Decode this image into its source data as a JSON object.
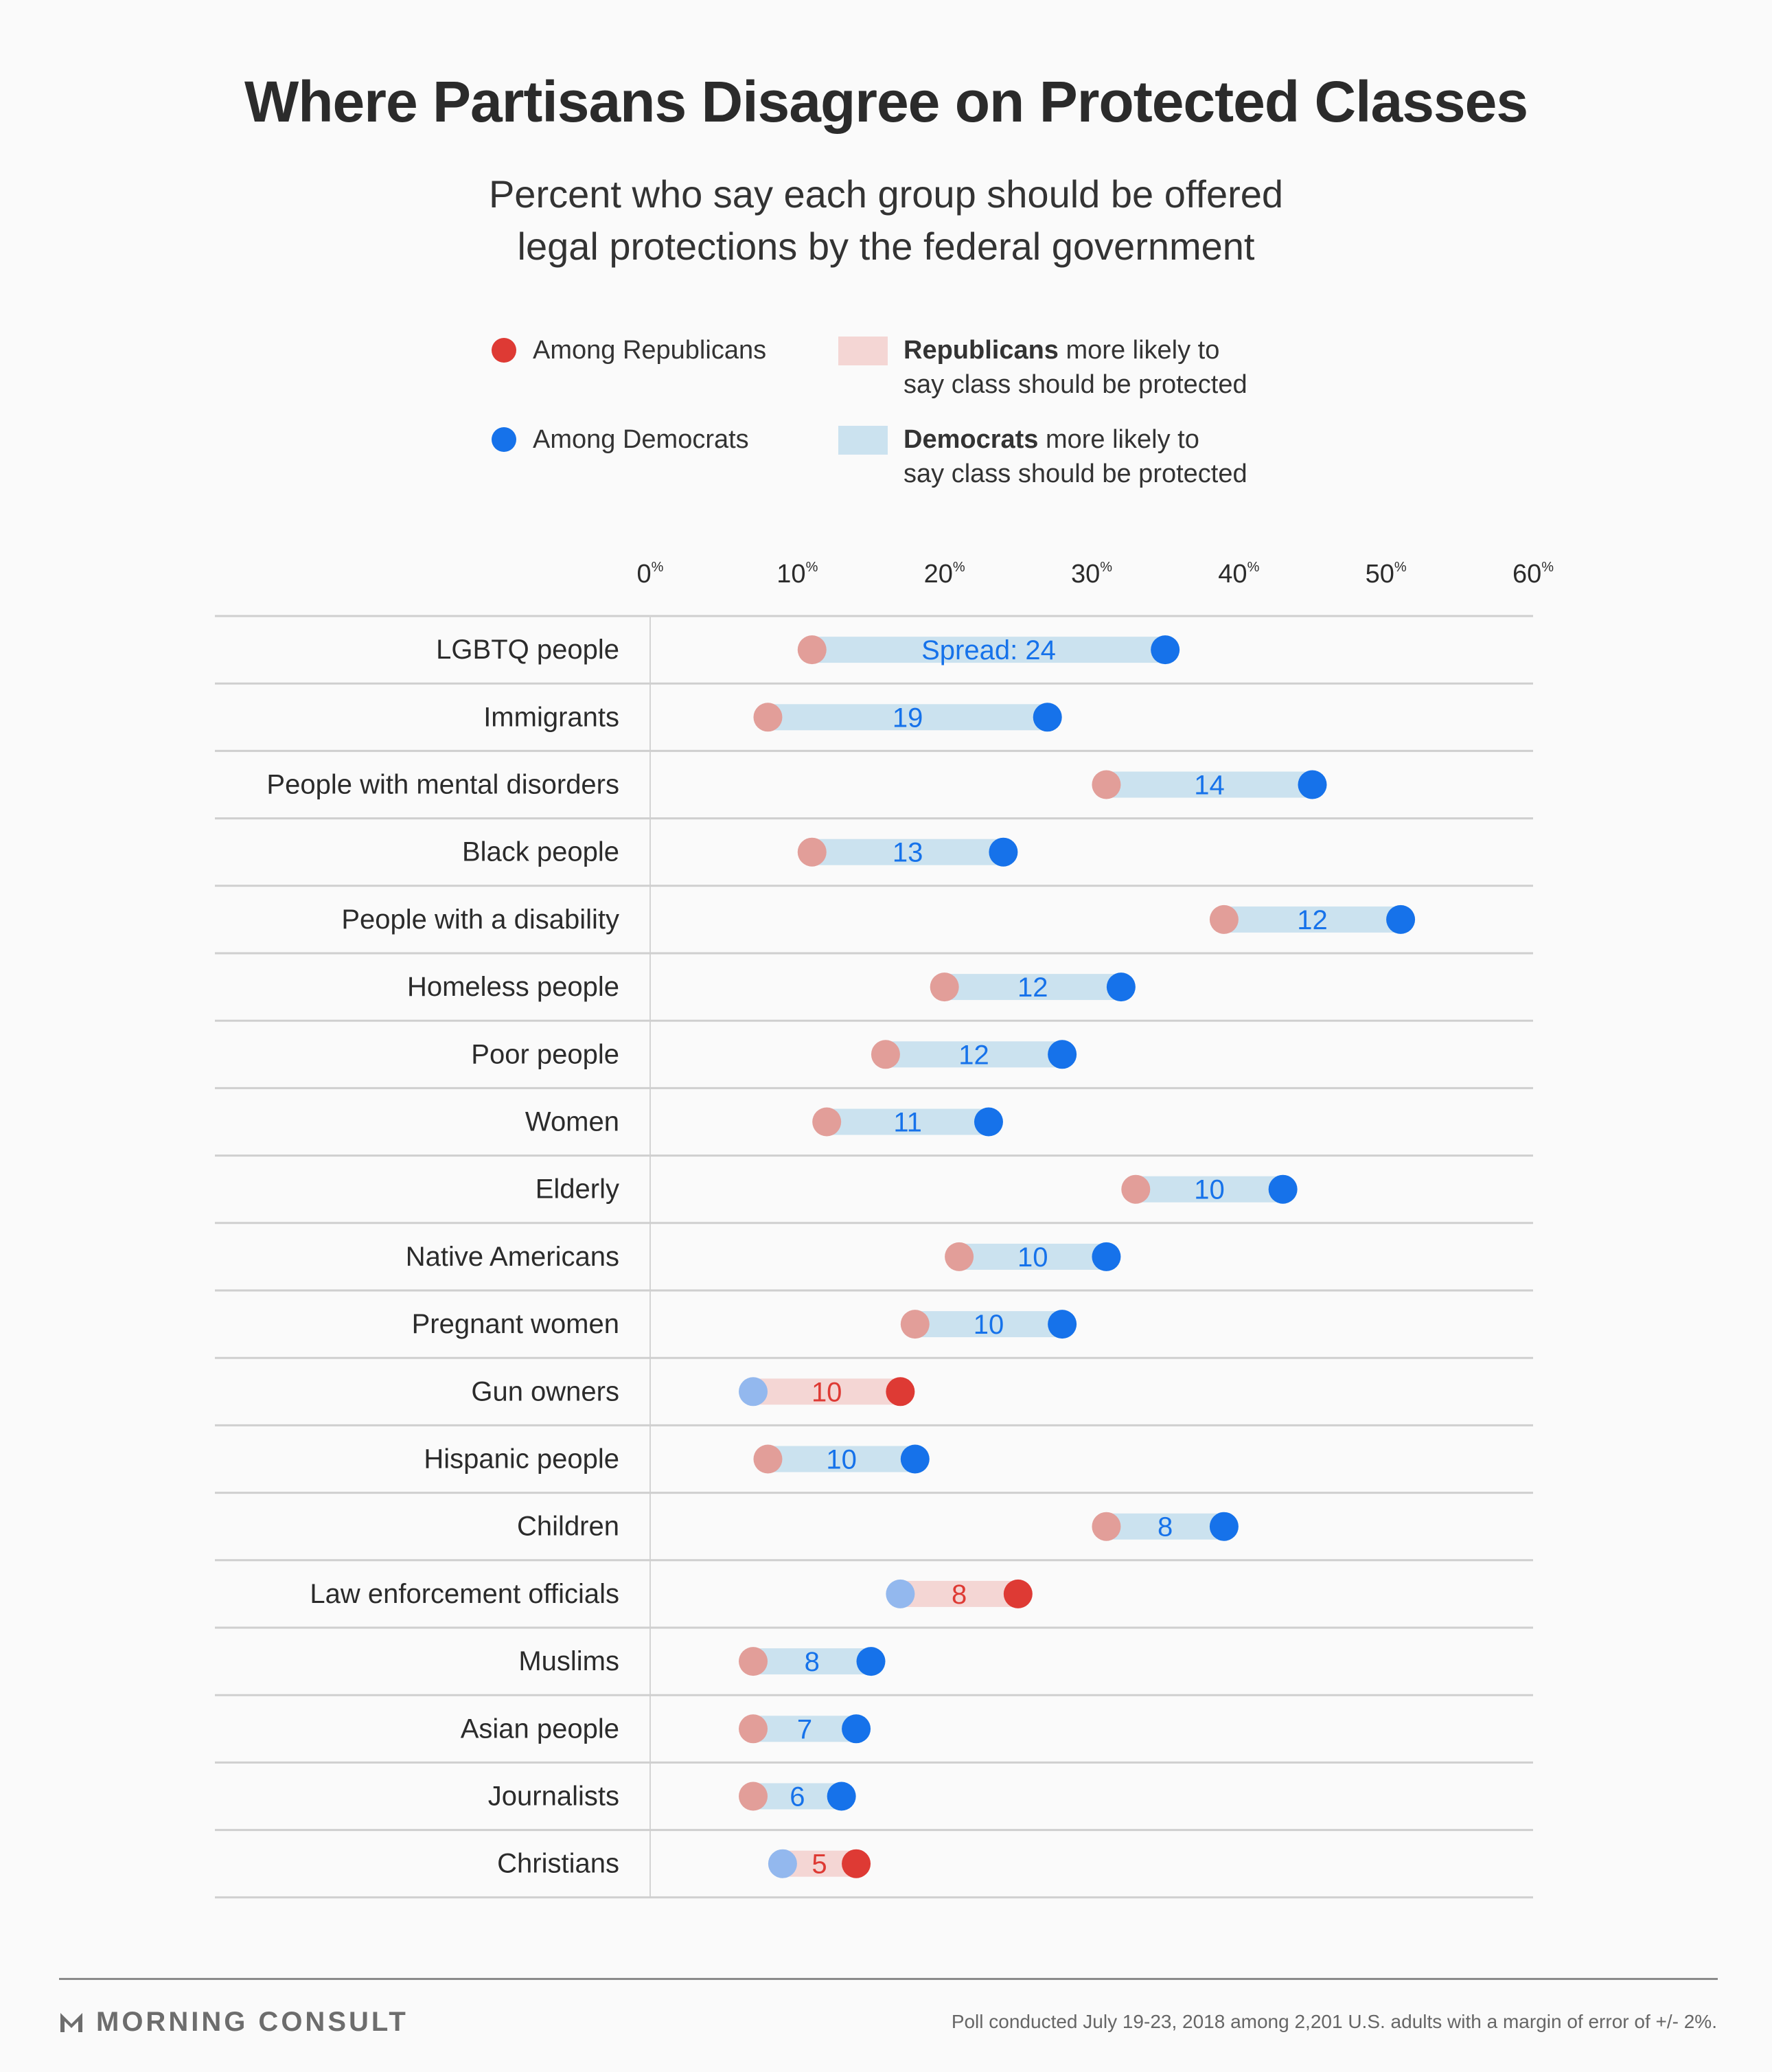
{
  "title": "Where Partisans Disagree on Protected Classes",
  "subtitle_line1": "Percent who say each group should be offered",
  "subtitle_line2": "legal protections by the federal government",
  "legend": {
    "rep_dot": "Among Republicans",
    "dem_dot": "Among Democrats",
    "rep_bar_bold": "Republicans",
    "rep_bar_rest": " more likely to",
    "rep_bar_line2": "say class should be protected",
    "dem_bar_bold": "Democrats",
    "dem_bar_rest": " more likely to",
    "dem_bar_line2": "say class should be protected"
  },
  "colors": {
    "rep": "#de3a34",
    "rep_light": "#e29e99",
    "dem": "#1672ea",
    "dem_light": "#93b8ee",
    "rep_bar": "#f4d6d4",
    "dem_bar": "#cbe2ef"
  },
  "chart_data": {
    "type": "dumbbell",
    "xlim": [
      0,
      60
    ],
    "ticks": [
      "0%",
      "10%",
      "20%",
      "30%",
      "40%",
      "50%",
      "60%"
    ],
    "rows": [
      {
        "label": "LGBTQ people",
        "rep": 11,
        "dem": 35,
        "spread_label": "Spread: 24"
      },
      {
        "label": "Immigrants",
        "rep": 8,
        "dem": 27,
        "spread_label": "19"
      },
      {
        "label": "People with mental disorders",
        "rep": 31,
        "dem": 45,
        "spread_label": "14"
      },
      {
        "label": "Black people",
        "rep": 11,
        "dem": 24,
        "spread_label": "13"
      },
      {
        "label": "People with a disability",
        "rep": 39,
        "dem": 51,
        "spread_label": "12"
      },
      {
        "label": "Homeless people",
        "rep": 20,
        "dem": 32,
        "spread_label": "12"
      },
      {
        "label": "Poor people",
        "rep": 16,
        "dem": 28,
        "spread_label": "12"
      },
      {
        "label": "Women",
        "rep": 12,
        "dem": 23,
        "spread_label": "11"
      },
      {
        "label": "Elderly",
        "rep": 33,
        "dem": 43,
        "spread_label": "10"
      },
      {
        "label": "Native Americans",
        "rep": 21,
        "dem": 31,
        "spread_label": "10"
      },
      {
        "label": "Pregnant women",
        "rep": 18,
        "dem": 28,
        "spread_label": "10"
      },
      {
        "label": "Gun owners",
        "rep": 17,
        "dem": 7,
        "spread_label": "10"
      },
      {
        "label": "Hispanic people",
        "rep": 8,
        "dem": 18,
        "spread_label": "10"
      },
      {
        "label": "Children",
        "rep": 31,
        "dem": 39,
        "spread_label": "8"
      },
      {
        "label": "Law enforcement officials",
        "rep": 25,
        "dem": 17,
        "spread_label": "8"
      },
      {
        "label": "Muslims",
        "rep": 7,
        "dem": 15,
        "spread_label": "8"
      },
      {
        "label": "Asian people",
        "rep": 7,
        "dem": 14,
        "spread_label": "7"
      },
      {
        "label": "Journalists",
        "rep": 7,
        "dem": 13,
        "spread_label": "6"
      },
      {
        "label": "Christians",
        "rep": 14,
        "dem": 9,
        "spread_label": "5"
      }
    ]
  },
  "footer": {
    "brand": "MORNING CONSULT",
    "note": "Poll conducted July 19-23, 2018 among 2,201 U.S. adults with a margin of error of +/- 2%."
  }
}
